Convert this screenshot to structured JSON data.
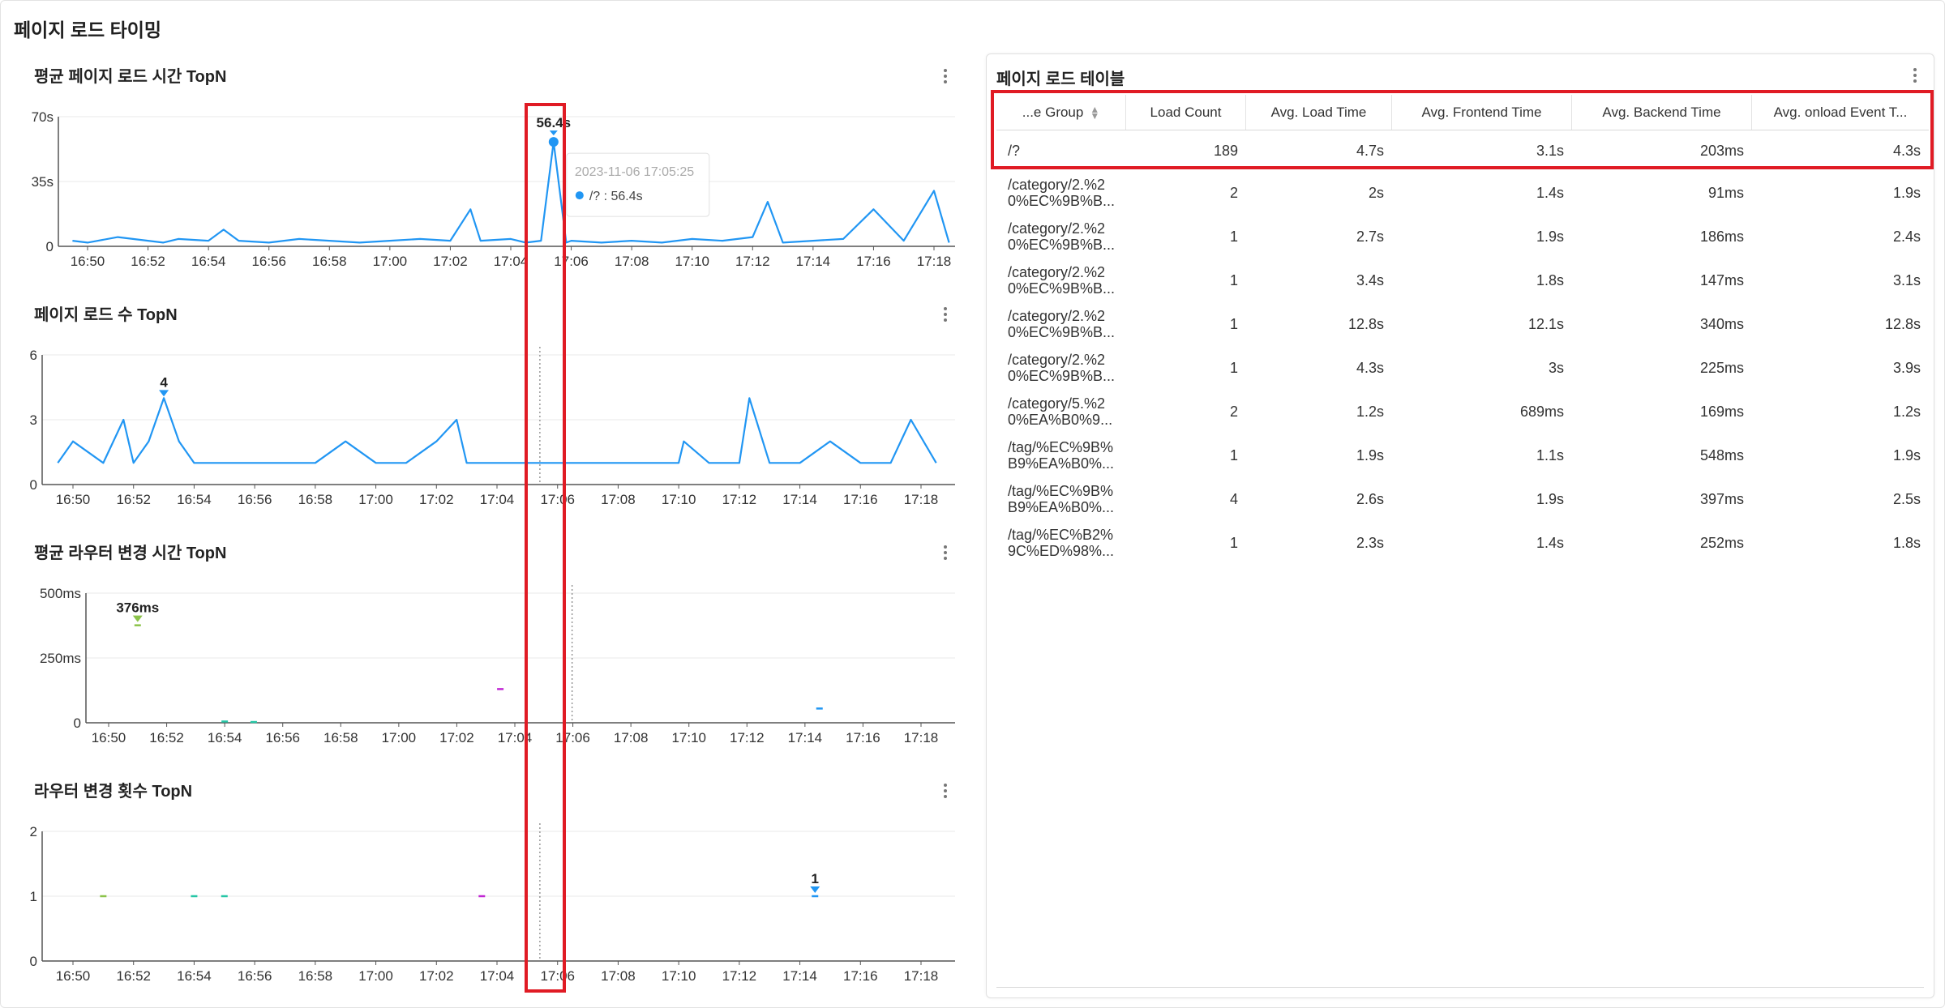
{
  "page": {
    "title": "페이지 로드 타이밍"
  },
  "colors": {
    "line": "#2196f3",
    "grid": "#e8e8e8",
    "axis": "#555555",
    "highlight": "#e01b24",
    "green": "#8bc34a",
    "magenta": "#c026d3",
    "teal": "#26c6a6"
  },
  "charts": [
    {
      "title": "평균 페이지 로드 시간 TopN",
      "y_ticks": [
        "70s",
        "35s",
        "0"
      ],
      "x_ticks": [
        "16:50",
        "16:52",
        "16:54",
        "16:56",
        "16:58",
        "17:00",
        "17:02",
        "17:04",
        "17:06",
        "17:08",
        "17:10",
        "17:12",
        "17:14",
        "17:16",
        "17:18"
      ],
      "peak_label": "56.4s",
      "tooltip": {
        "time": "2023-11-06 17:05:25",
        "series_value": "/? : 56.4s"
      }
    },
    {
      "title": "페이지 로드 수 TopN",
      "y_ticks": [
        "6",
        "3",
        "0"
      ],
      "x_ticks": [
        "16:50",
        "16:52",
        "16:54",
        "16:56",
        "16:58",
        "17:00",
        "17:02",
        "17:04",
        "17:06",
        "17:08",
        "17:10",
        "17:12",
        "17:14",
        "17:16",
        "17:18"
      ],
      "peak_label": "4"
    },
    {
      "title": "평균 라우터 변경 시간 TopN",
      "y_ticks": [
        "500ms",
        "250ms",
        "0"
      ],
      "x_ticks": [
        "16:50",
        "16:52",
        "16:54",
        "16:56",
        "16:58",
        "17:00",
        "17:02",
        "17:04",
        "17:06",
        "17:08",
        "17:10",
        "17:12",
        "17:14",
        "17:16",
        "17:18"
      ],
      "peak_label": "376ms"
    },
    {
      "title": "라우터 변경 횟수 TopN",
      "y_ticks": [
        "2",
        "1",
        "0"
      ],
      "x_ticks": [
        "16:50",
        "16:52",
        "16:54",
        "16:56",
        "16:58",
        "17:00",
        "17:02",
        "17:04",
        "17:06",
        "17:08",
        "17:10",
        "17:12",
        "17:14",
        "17:16",
        "17:18"
      ],
      "peak_label": "1"
    }
  ],
  "chart_data": [
    {
      "type": "line",
      "title": "평균 페이지 로드 시간 TopN",
      "ylim": [
        0,
        70
      ],
      "y_unit": "s",
      "x": [
        "16:49:30",
        "16:50",
        "16:51",
        "16:52",
        "16:52:30",
        "16:53",
        "16:54",
        "16:54:30",
        "16:55",
        "16:56",
        "16:57",
        "16:58",
        "16:59",
        "17:00",
        "17:01",
        "17:02",
        "17:02:40",
        "17:03",
        "17:04",
        "17:04:30",
        "17:05",
        "17:05:25",
        "17:05:50",
        "17:06",
        "17:07",
        "17:08",
        "17:09",
        "17:10",
        "17:11",
        "17:12",
        "17:12:30",
        "17:13",
        "17:14",
        "17:15",
        "17:16",
        "17:17",
        "17:18",
        "17:18:30"
      ],
      "values": [
        3,
        2,
        5,
        3,
        2,
        4,
        3,
        9,
        3,
        2,
        4,
        3,
        2,
        3,
        4,
        3,
        20,
        3,
        4,
        2,
        3,
        56.4,
        2,
        3,
        2,
        3,
        2,
        4,
        3,
        5,
        24,
        2,
        3,
        4,
        20,
        3,
        30,
        2
      ]
    },
    {
      "type": "line",
      "title": "페이지 로드 수 TopN",
      "ylim": [
        0,
        6
      ],
      "x": [
        "16:49:30",
        "16:50",
        "16:51",
        "16:51:40",
        "16:52",
        "16:52:30",
        "16:53",
        "16:53:30",
        "16:54",
        "16:56",
        "16:58",
        "16:59",
        "17:00",
        "17:01",
        "17:02",
        "17:02:40",
        "17:03",
        "17:04",
        "17:06",
        "17:08",
        "17:10",
        "17:10:10",
        "17:11",
        "17:12",
        "17:12:20",
        "17:13",
        "17:14",
        "17:15",
        "17:16",
        "17:17",
        "17:17:40",
        "17:18:30"
      ],
      "values": [
        1,
        2,
        1,
        3,
        1,
        2,
        4,
        2,
        1,
        1,
        1,
        2,
        1,
        1,
        2,
        3,
        1,
        1,
        1,
        1,
        1,
        2,
        1,
        1,
        4,
        1,
        1,
        2,
        1,
        1,
        3,
        1
      ]
    },
    {
      "type": "scatter",
      "title": "평균 라우터 변경 시간 TopN",
      "ylim": [
        0,
        500
      ],
      "y_unit": "ms",
      "x": [
        "16:51",
        "16:54",
        "16:55",
        "17:03:30",
        "17:14:30"
      ],
      "values": [
        376,
        5,
        3,
        130,
        55
      ]
    },
    {
      "type": "scatter",
      "title": "라우터 변경 횟수 TopN",
      "ylim": [
        0,
        2
      ],
      "x": [
        "16:51",
        "16:54",
        "16:55",
        "17:03:30",
        "17:14:30"
      ],
      "values": [
        1,
        1,
        1,
        1,
        1
      ]
    }
  ],
  "table": {
    "title": "페이지 로드 테이블",
    "columns": [
      "...e Group",
      "Load Count",
      "Avg. Load Time",
      "Avg. Frontend Time",
      "Avg. Backend Time",
      "Avg. onload Event T..."
    ],
    "rows": [
      {
        "page": [
          "/?",
          ""
        ],
        "count": "189",
        "load": "4.7s",
        "front": "3.1s",
        "back": "203ms",
        "onload": "4.3s"
      },
      {
        "page": [
          "/category/2.%2",
          "0%EC%9B%B..."
        ],
        "count": "2",
        "load": "2s",
        "front": "1.4s",
        "back": "91ms",
        "onload": "1.9s"
      },
      {
        "page": [
          "/category/2.%2",
          "0%EC%9B%B..."
        ],
        "count": "1",
        "load": "2.7s",
        "front": "1.9s",
        "back": "186ms",
        "onload": "2.4s"
      },
      {
        "page": [
          "/category/2.%2",
          "0%EC%9B%B..."
        ],
        "count": "1",
        "load": "3.4s",
        "front": "1.8s",
        "back": "147ms",
        "onload": "3.1s"
      },
      {
        "page": [
          "/category/2.%2",
          "0%EC%9B%B..."
        ],
        "count": "1",
        "load": "12.8s",
        "front": "12.1s",
        "back": "340ms",
        "onload": "12.8s"
      },
      {
        "page": [
          "/category/2.%2",
          "0%EC%9B%B..."
        ],
        "count": "1",
        "load": "4.3s",
        "front": "3s",
        "back": "225ms",
        "onload": "3.9s"
      },
      {
        "page": [
          "/category/5.%2",
          "0%EA%B0%9..."
        ],
        "count": "2",
        "load": "1.2s",
        "front": "689ms",
        "back": "169ms",
        "onload": "1.2s"
      },
      {
        "page": [
          "/tag/%EC%9B%",
          "B9%EA%B0%..."
        ],
        "count": "1",
        "load": "1.9s",
        "front": "1.1s",
        "back": "548ms",
        "onload": "1.9s"
      },
      {
        "page": [
          "/tag/%EC%9B%",
          "B9%EA%B0%..."
        ],
        "count": "4",
        "load": "2.6s",
        "front": "1.9s",
        "back": "397ms",
        "onload": "2.5s"
      },
      {
        "page": [
          "/tag/%EC%B2%",
          "9C%ED%98%..."
        ],
        "count": "1",
        "load": "2.3s",
        "front": "1.4s",
        "back": "252ms",
        "onload": "1.8s"
      }
    ]
  }
}
